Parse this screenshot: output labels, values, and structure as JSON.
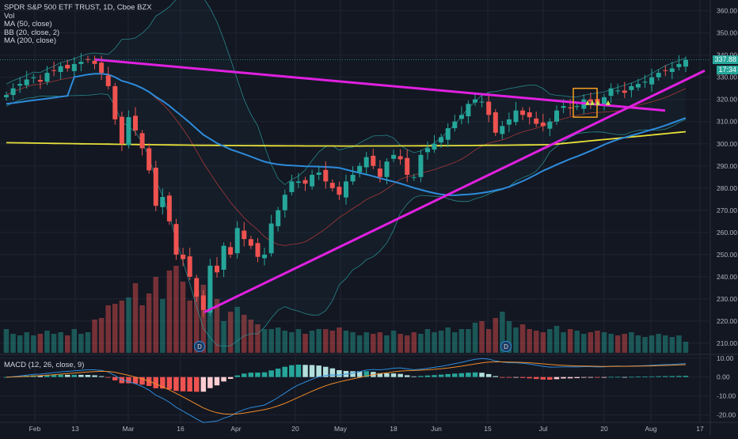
{
  "title": "SPDR S&P 500 ETF TRUST, 1D, Cboe BZX",
  "legend": [
    "Vol",
    "MA (50, close)",
    "BB (20, close, 2)",
    "MA (200, close)"
  ],
  "macd_label": "MACD (12, 26, close, 9)",
  "last_price_label": "337.88",
  "countdown_label": "17:34",
  "dividend_marker": "D",
  "colors": {
    "background": "#131722",
    "grid": "#1f2433",
    "up": "#26a69a",
    "down": "#ef5350",
    "ma50": "#2e8bdb",
    "ma200": "#e8e23a",
    "bb": "#2ea3a3",
    "bb_basis": "#a83838",
    "trendline": "#e020e0",
    "signal_box": "#f0a020",
    "macd_line": "#2e8bdb",
    "signal_line": "#f08c28"
  },
  "chart_data": [
    {
      "type": "candlestick",
      "title": "SPDR S&P 500 ETF TRUST, 1D, Cboe BZX",
      "x_ticks": [
        "Feb",
        "13",
        "Mar",
        "16",
        "Apr",
        "20",
        "May",
        "18",
        "Jun",
        "15",
        "Jul",
        "20",
        "Aug",
        "17"
      ],
      "y_ticks": [
        360,
        350,
        340,
        330,
        320,
        310,
        300,
        290,
        280,
        270,
        260,
        250,
        240,
        230,
        220,
        210
      ],
      "ylim": [
        205,
        362
      ],
      "close_series": [
        322,
        325,
        327,
        329,
        330,
        328,
        332,
        333,
        335,
        334,
        336,
        337,
        338,
        336,
        332,
        326,
        311,
        300,
        312,
        306,
        298,
        288,
        272,
        276,
        265,
        250,
        248,
        240,
        231,
        225,
        245,
        242,
        254,
        250,
        262,
        257,
        254,
        249,
        250,
        264,
        270,
        277,
        283,
        283,
        282,
        286,
        287,
        283,
        280,
        277,
        283,
        286,
        290,
        294,
        290,
        285,
        292,
        295,
        293,
        286,
        285,
        295,
        298,
        300,
        303,
        307,
        310,
        313,
        318,
        320,
        319,
        313,
        305,
        308,
        311,
        315,
        313,
        312,
        309,
        308,
        310,
        315,
        317,
        316,
        317,
        320,
        319,
        318,
        321,
        325,
        324,
        323,
        326,
        327,
        328,
        330,
        332,
        333,
        334,
        336,
        337.88
      ],
      "overlays": [
        "MA 50",
        "MA 200",
        "Bollinger Bands (20, 2)"
      ],
      "trendlines": 3
    },
    {
      "type": "bar",
      "title": "Vol",
      "values": [
        30,
        24,
        22,
        26,
        22,
        24,
        28,
        24,
        26,
        22,
        30,
        24,
        26,
        42,
        44,
        60,
        62,
        66,
        70,
        88,
        60,
        75,
        96,
        68,
        104,
        110,
        90,
        66,
        78,
        86,
        60,
        68,
        40,
        52,
        58,
        48,
        42,
        36,
        30,
        30,
        32,
        28,
        26,
        30,
        24,
        28,
        30,
        30,
        28,
        32,
        28,
        26,
        22,
        26,
        24,
        26,
        22,
        28,
        24,
        22,
        26,
        24,
        30,
        26,
        28,
        32,
        26,
        30,
        30,
        38,
        40,
        30,
        44,
        52,
        40,
        32,
        36,
        30,
        28,
        26,
        30,
        34,
        26,
        30,
        28,
        24,
        26,
        28,
        26,
        24,
        22,
        24,
        26,
        22,
        20,
        22,
        24,
        22,
        20,
        22,
        14
      ]
    },
    {
      "type": "histogram",
      "title": "MACD (12, 26, close, 9)",
      "y_ticks": [
        10,
        0,
        -10,
        -20
      ],
      "ylim": [
        -24,
        12
      ]
    }
  ]
}
